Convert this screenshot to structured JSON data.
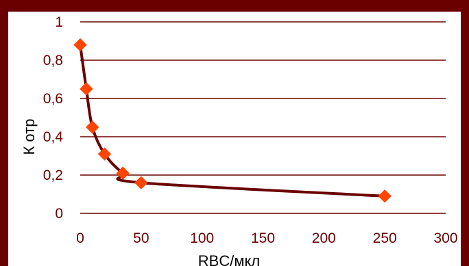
{
  "chart_data": {
    "type": "line",
    "title": "",
    "xlabel": "RBC/мкл",
    "ylabel": "К отр",
    "xlim": [
      0,
      300
    ],
    "ylim": [
      0,
      1
    ],
    "x_ticks": [
      "0",
      "50",
      "100",
      "150",
      "200",
      "250",
      "300"
    ],
    "y_ticks": [
      "0",
      "0,2",
      "0,4",
      "0,6",
      "0,8",
      "1"
    ],
    "grid": true,
    "legend": "none",
    "series": [
      {
        "x": [
          0,
          5,
          10,
          20,
          35,
          50,
          250
        ],
        "y": [
          0.88,
          0.65,
          0.45,
          0.31,
          0.21,
          0.16,
          0.09
        ]
      }
    ],
    "colors": {
      "line": "#6b0000",
      "marker": "#ff4500",
      "grid": "#6b0000",
      "frame": "#6b0000"
    }
  }
}
